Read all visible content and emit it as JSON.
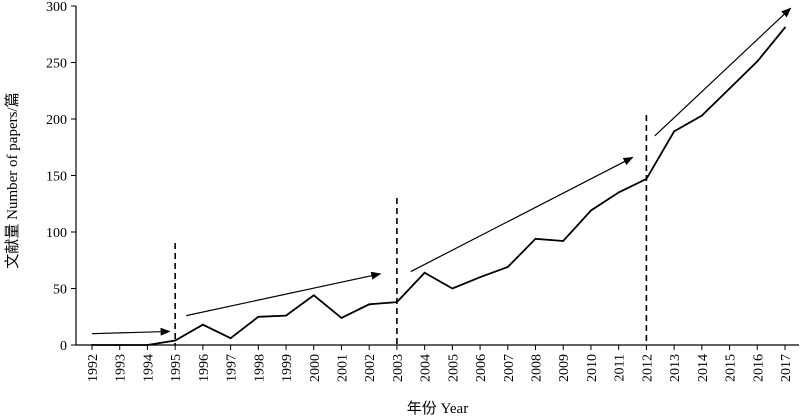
{
  "chart_data": {
    "type": "line",
    "title": "",
    "xlabel": "年份 Year",
    "ylabel": "文献量 Number of papers/篇",
    "ylim": [
      0,
      300
    ],
    "yticks": [
      0,
      50,
      100,
      150,
      200,
      250,
      300
    ],
    "grid": false,
    "legend": "none",
    "categories": [
      "1992",
      "1993",
      "1994",
      "1995",
      "1996",
      "1997",
      "1998",
      "1999",
      "2000",
      "2001",
      "2002",
      "2003",
      "2004",
      "2005",
      "2006",
      "2007",
      "2008",
      "2009",
      "2010",
      "2011",
      "2012",
      "2013",
      "2014",
      "2015",
      "2016",
      "2017"
    ],
    "series": [
      {
        "values": [
          0,
          0,
          0,
          4,
          18,
          6,
          25,
          26,
          44,
          24,
          36,
          38,
          64,
          50,
          60,
          69,
          94,
          92,
          119,
          135,
          147,
          189,
          203,
          227,
          251,
          281
        ]
      }
    ],
    "period_boundaries": [
      "1995",
      "2003",
      "2012"
    ],
    "trend_arrows": [
      {
        "from": {
          "x": "1992",
          "y": 10
        },
        "to": {
          "x": "1994.8",
          "y": 12
        }
      },
      {
        "from": {
          "x": "1995.4",
          "y": 26
        },
        "to": {
          "x": "2002.4",
          "y": 63
        }
      },
      {
        "from": {
          "x": "2003.5",
          "y": 65
        },
        "to": {
          "x": "2011.5",
          "y": 166
        }
      },
      {
        "from": {
          "x": "2012.3",
          "y": 185
        },
        "to": {
          "x": "2017.2",
          "y": 298
        }
      }
    ]
  }
}
